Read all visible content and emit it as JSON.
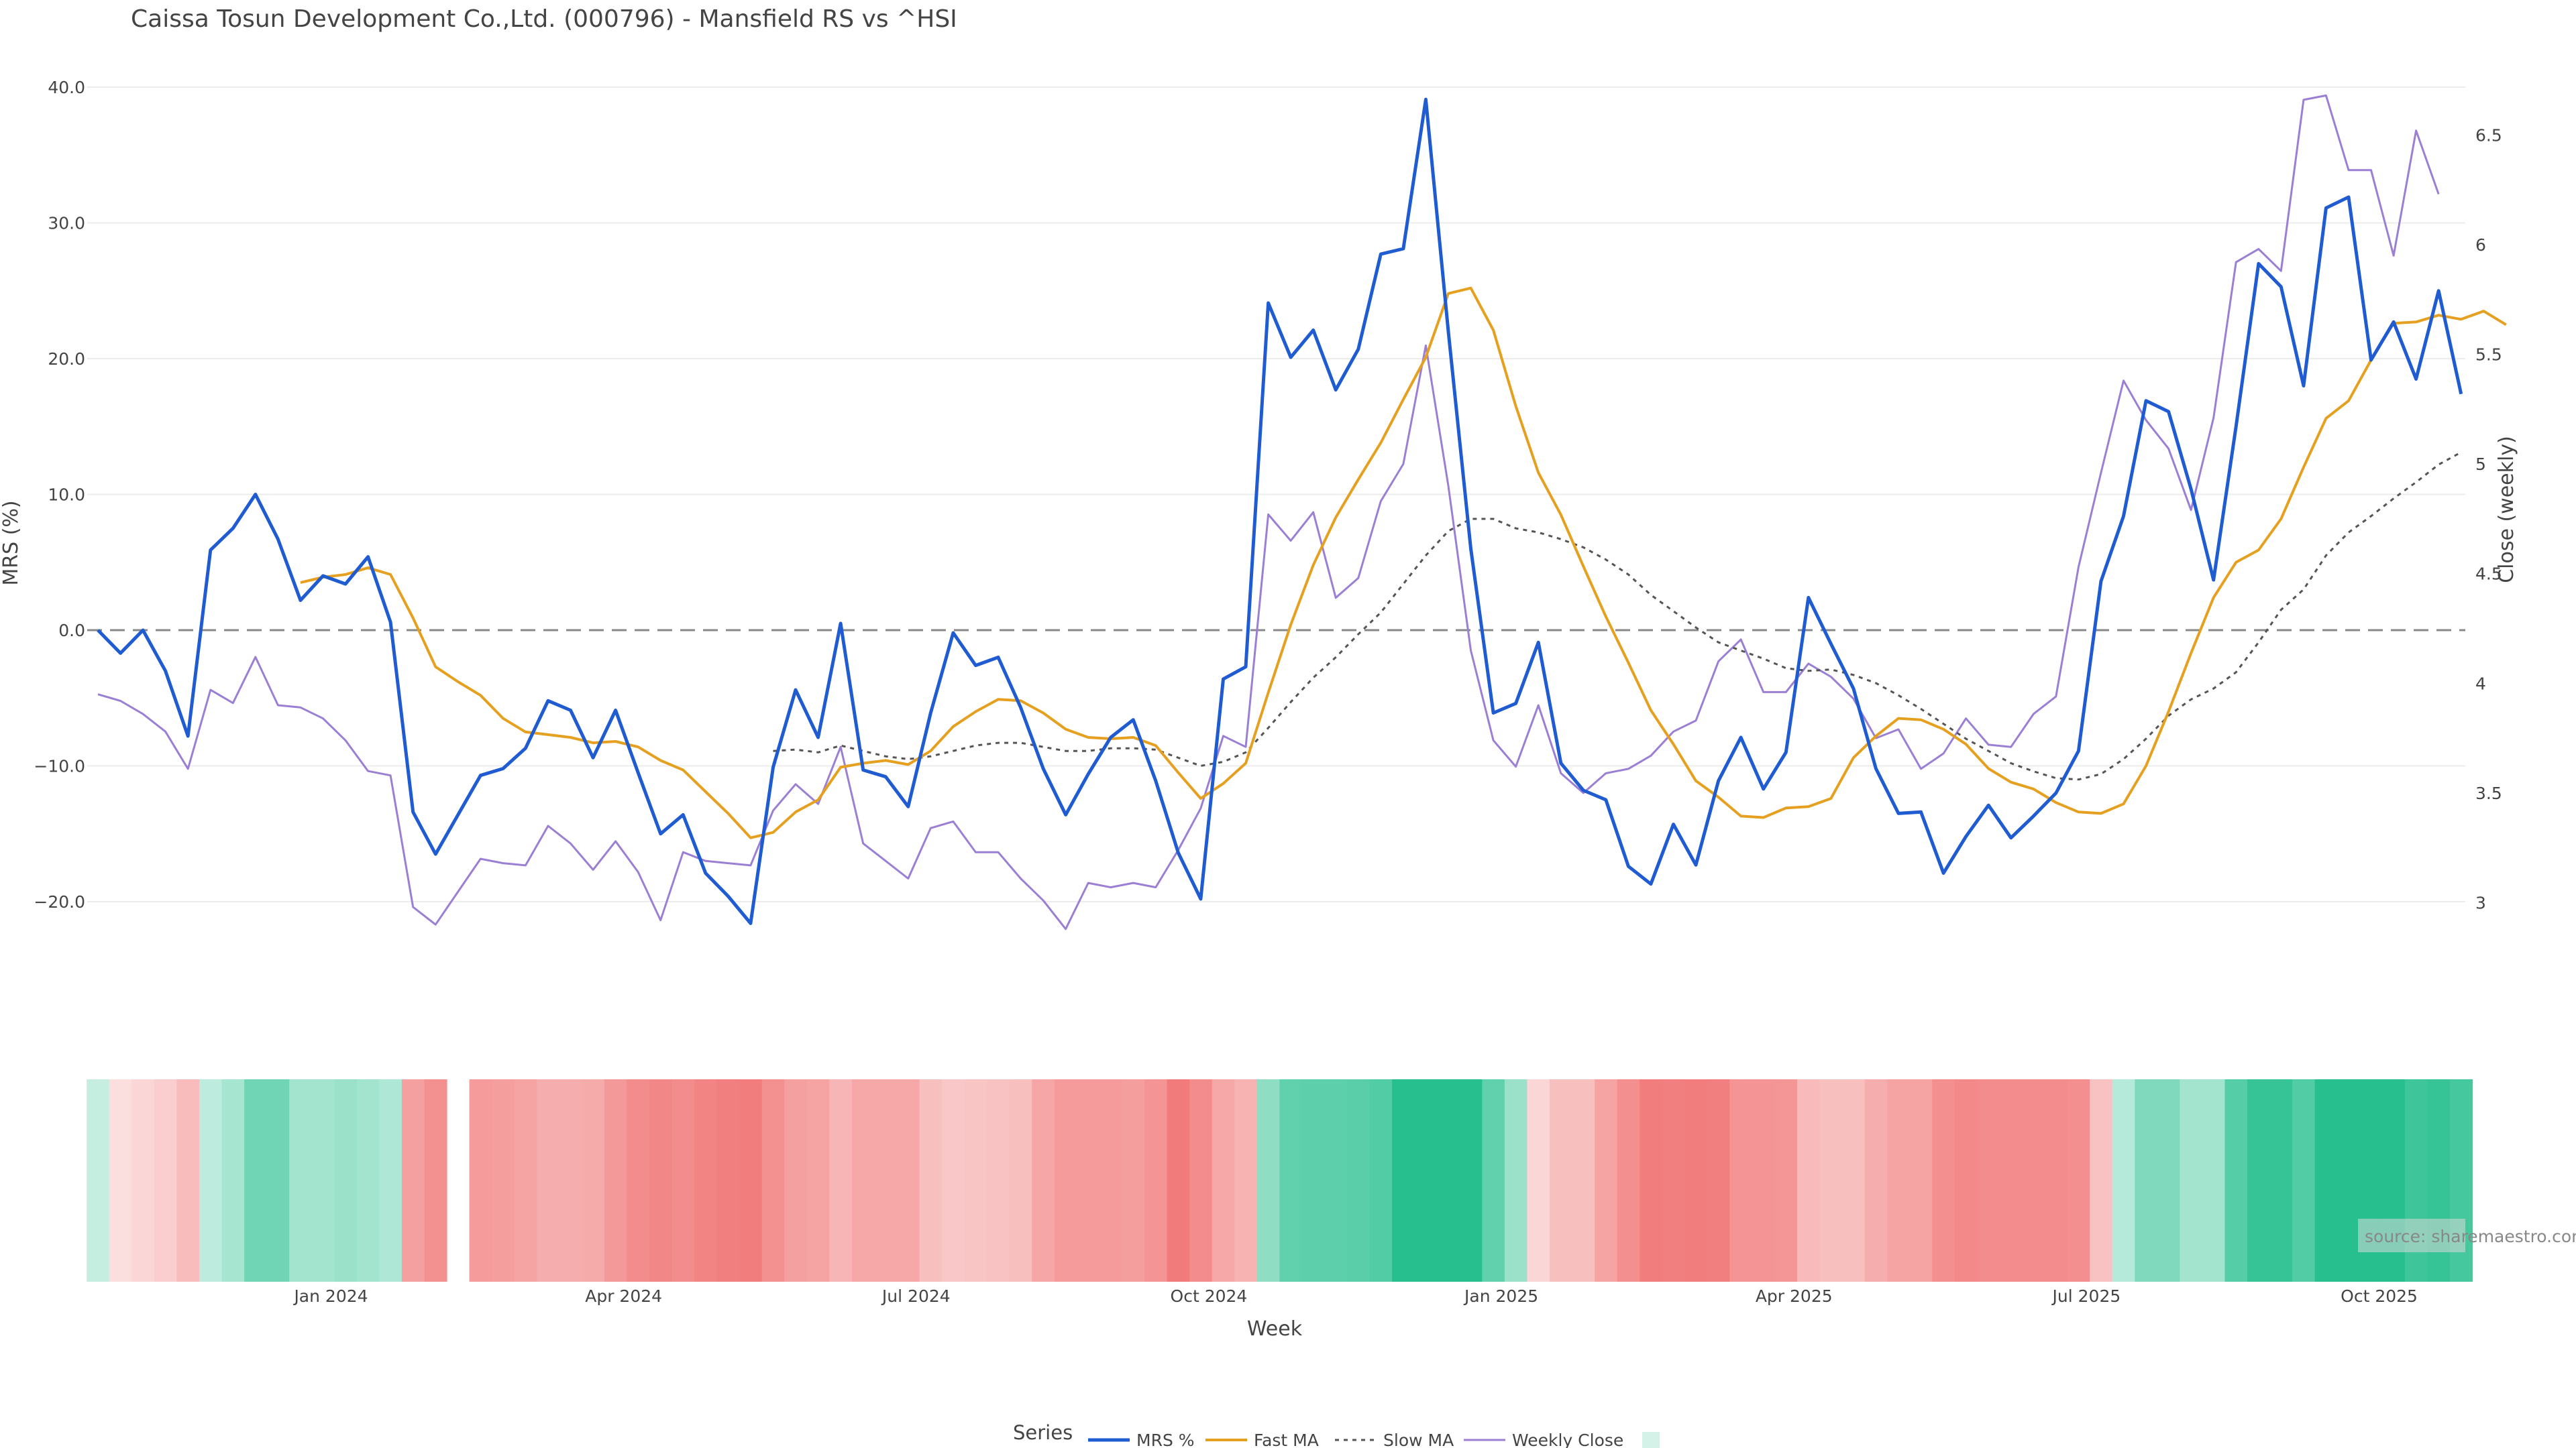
{
  "chart_data": {
    "type": "line",
    "title": "Caissa Tosun Development Co.,Ltd. (000796) - Mansfield RS vs ^HSI",
    "xlabel": "Week",
    "ylabel_left": "MRS (%)",
    "ylabel_right": "Close (weekly)",
    "source": "source: sharemaestro.com",
    "y_left": {
      "min": -30,
      "max": 42,
      "ticks": [
        -20,
        -10,
        0,
        10,
        20,
        30,
        40
      ],
      "tick_labels": [
        "−20.0",
        "−10.0",
        "0.0",
        "10.0",
        "20.0",
        "30.0",
        "40.0"
      ]
    },
    "y_right": {
      "min": 2.5,
      "max": 6.75,
      "ticks": [
        3,
        3.5,
        4,
        4.5,
        5,
        5.5,
        6,
        6.5
      ],
      "tick_labels": [
        "3",
        "3.5",
        "4",
        "4.5",
        "5",
        "5.5",
        "6",
        "6.5"
      ]
    },
    "x_ticks": [
      {
        "index": 10,
        "label": "Jan 2024"
      },
      {
        "index": 23,
        "label": "Apr 2024"
      },
      {
        "index": 36,
        "label": "Jul 2024"
      },
      {
        "index": 49,
        "label": "Oct 2024"
      },
      {
        "index": 62,
        "label": "Jan 2025"
      },
      {
        "index": 75,
        "label": "Apr 2025"
      },
      {
        "index": 88,
        "label": "Jul 2025"
      },
      {
        "index": 101,
        "label": "Oct 2025"
      }
    ],
    "reference_line": {
      "y": 0,
      "style": "dashed"
    },
    "colors": {
      "mrs": "#1f5bd1",
      "fast": "#e6a020",
      "slow": "#555555",
      "close": "#9b7fd4",
      "positive": "#27bf8e",
      "negative": "#f07c7c"
    },
    "series": [
      {
        "name": "MRS %",
        "axis": "left",
        "values": [
          0.0,
          -1.7,
          0.0,
          -3.0,
          -7.8,
          5.9,
          7.5,
          10.0,
          6.7,
          2.2,
          4.0,
          3.4,
          5.4,
          0.6,
          -13.4,
          -16.5,
          -13.6,
          -10.7,
          -10.2,
          -8.7,
          -5.2,
          -5.9,
          -9.4,
          -5.9,
          -10.5,
          -15.0,
          -13.6,
          -17.9,
          -19.6,
          -21.6,
          -10.1,
          -4.4,
          -7.9,
          0.5,
          -10.3,
          -10.8,
          -13.0,
          -6.1,
          -0.2,
          -2.6,
          -2.0,
          -5.7,
          -10.2,
          -13.6,
          -10.6,
          -7.9,
          -6.6,
          -11.1,
          -16.4,
          -19.8,
          -3.6,
          -2.7,
          24.1,
          20.1,
          22.1,
          17.7,
          20.7,
          27.7,
          28.1,
          39.1,
          22.0,
          6.0,
          -6.1,
          -5.4,
          -0.9,
          -9.8,
          -11.8,
          -12.5,
          -17.4,
          -18.7,
          -14.3,
          -17.3,
          -11.1,
          -7.9,
          -11.7,
          -9.0,
          2.4,
          -1.0,
          -4.3,
          -10.2,
          -13.5,
          -13.4,
          -17.9,
          -15.2,
          -12.9,
          -15.3,
          -13.7,
          -12.0,
          -8.9,
          3.6,
          8.4,
          16.9,
          16.1,
          10.4,
          3.7,
          15.0,
          27.0,
          25.3,
          18.0,
          31.1,
          31.9,
          19.9,
          22.7,
          18.5,
          25.0,
          17.4
        ]
      },
      {
        "name": "Fast MA",
        "axis": "left",
        "start_index": 9,
        "values": [
          3.5,
          3.9,
          4.1,
          4.6,
          4.1,
          0.9,
          -2.7,
          -3.8,
          -4.8,
          -6.5,
          -7.5,
          -7.7,
          -7.9,
          -8.3,
          -8.2,
          -8.6,
          -9.6,
          -10.3,
          -11.9,
          -13.5,
          -15.3,
          -14.9,
          -13.4,
          -12.5,
          -10.1,
          -9.8,
          -9.6,
          -9.9,
          -8.9,
          -7.1,
          -6.0,
          -5.1,
          -5.2,
          -6.1,
          -7.3,
          -7.9,
          -8.0,
          -7.9,
          -8.5,
          -10.5,
          -12.4,
          -11.3,
          -9.8,
          -4.6,
          0.4,
          4.8,
          8.3,
          11.1,
          13.8,
          17.0,
          20.1,
          24.8,
          25.2,
          22.1,
          16.5,
          11.6,
          8.5,
          4.7,
          1.0,
          -2.4,
          -5.9,
          -8.4,
          -11.1,
          -12.3,
          -13.7,
          -13.8,
          -13.1,
          -13.0,
          -12.4,
          -9.4,
          -7.8,
          -6.5,
          -6.6,
          -7.3,
          -8.4,
          -10.2,
          -11.2,
          -11.7,
          -12.7,
          -13.4,
          -13.5,
          -12.8,
          -10.0,
          -6.0,
          -1.7,
          2.4,
          5.0,
          5.9,
          8.2,
          12.0,
          15.6,
          16.9,
          19.9,
          22.6,
          22.7,
          23.2,
          22.9,
          23.5,
          22.5
        ]
      },
      {
        "name": "Slow MA",
        "axis": "left",
        "start_index": 30,
        "values": [
          -8.9,
          -8.8,
          -9.0,
          -8.5,
          -8.9,
          -9.3,
          -9.5,
          -9.3,
          -8.9,
          -8.5,
          -8.3,
          -8.3,
          -8.6,
          -8.9,
          -8.9,
          -8.7,
          -8.7,
          -8.8,
          -9.4,
          -10.0,
          -9.7,
          -9.0,
          -7.2,
          -5.3,
          -3.5,
          -2.0,
          -0.3,
          1.3,
          3.4,
          5.5,
          7.3,
          8.2,
          8.2,
          7.5,
          7.2,
          6.7,
          6.1,
          5.2,
          4.1,
          2.6,
          1.4,
          0.2,
          -0.9,
          -1.5,
          -2.1,
          -2.8,
          -3.0,
          -2.9,
          -3.3,
          -3.9,
          -4.8,
          -5.8,
          -6.9,
          -8.0,
          -8.9,
          -9.8,
          -10.4,
          -10.9,
          -11.0,
          -10.6,
          -9.5,
          -8.0,
          -6.3,
          -5.1,
          -4.3,
          -3.1,
          -0.9,
          1.5,
          3.0,
          5.5,
          7.2,
          8.4,
          9.7,
          10.9,
          12.2,
          13.1
        ]
      },
      {
        "name": "Weekly Close",
        "axis": "right",
        "values": [
          3.95,
          3.92,
          3.86,
          3.78,
          3.61,
          3.97,
          3.91,
          4.12,
          3.9,
          3.89,
          3.84,
          3.74,
          3.6,
          3.58,
          2.98,
          2.9,
          3.05,
          3.2,
          3.18,
          3.17,
          3.35,
          3.27,
          3.15,
          3.28,
          3.14,
          2.92,
          3.23,
          3.19,
          3.18,
          3.17,
          3.42,
          3.54,
          3.45,
          3.71,
          3.27,
          3.19,
          3.11,
          3.34,
          3.37,
          3.23,
          3.23,
          3.11,
          3.01,
          2.88,
          3.09,
          3.07,
          3.09,
          3.07,
          3.24,
          3.43,
          3.76,
          3.71,
          4.77,
          4.65,
          4.78,
          4.39,
          4.48,
          4.83,
          5.0,
          5.54,
          4.9,
          4.15,
          3.74,
          3.62,
          3.9,
          3.59,
          3.5,
          3.59,
          3.61,
          3.67,
          3.78,
          3.83,
          4.1,
          4.2,
          3.96,
          3.96,
          4.09,
          4.03,
          3.93,
          3.75,
          3.79,
          3.61,
          3.68,
          3.84,
          3.72,
          3.71,
          3.86,
          3.94,
          4.53,
          4.96,
          5.38,
          5.2,
          5.07,
          4.79,
          5.21,
          5.92,
          5.98,
          5.88,
          6.66,
          6.68,
          6.34,
          6.34,
          5.95,
          6.52,
          6.23
        ]
      }
    ],
    "heat_strip": {
      "gap_after_index": 15,
      "values": [
        0.5,
        -0.3,
        -0.6,
        -0.9,
        -1.6,
        0.7,
        1.3,
        2.7,
        2.7,
        1.4,
        1.4,
        1.6,
        1.4,
        1.1,
        -2.7,
        -3.3,
        -3.0,
        -2.9,
        -2.8,
        -2.6,
        -2.2,
        -2.2,
        -2.3,
        -3.0,
        -3.5,
        -3.7,
        -3.5,
        -3.8,
        -4.0,
        -4.1,
        -3.3,
        -2.7,
        -2.6,
        -1.9,
        -2.4,
        -2.4,
        -2.4,
        -1.5,
        -1.2,
        -1.3,
        -1.4,
        -1.5,
        -2.5,
        -2.9,
        -2.9,
        -2.9,
        -2.8,
        -3.2,
        -4.2,
        -3.5,
        -2.4,
        -2.0,
        1.9,
        3.1,
        3.2,
        3.2,
        3.3,
        3.5,
        4.6,
        4.6,
        4.6,
        4.6,
        3.1,
        1.6,
        -0.6,
        -1.5,
        -1.5,
        -2.6,
        -3.4,
        -4.1,
        -4.0,
        -4.1,
        -4.0,
        -3.2,
        -3.2,
        -3.1,
        -1.7,
        -1.5,
        -1.5,
        -2.2,
        -2.6,
        -2.6,
        -3.4,
        -3.6,
        -3.5,
        -3.5,
        -3.5,
        -3.5,
        -3.4,
        -1.4,
        0.9,
        2.3,
        2.3,
        1.4,
        1.4,
        3.4,
        4.2,
        4.2,
        3.5,
        4.6,
        4.6,
        4.6,
        4.6,
        4.0,
        4.2,
        3.8
      ]
    }
  },
  "legend": {
    "title": "Series",
    "items": [
      "MRS %",
      "Fast MA",
      "Slow MA",
      "Weekly Close"
    ]
  }
}
